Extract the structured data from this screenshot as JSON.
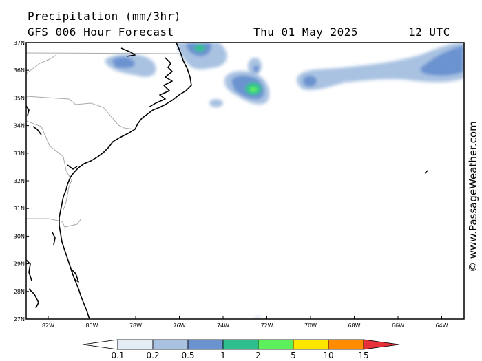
{
  "header": {
    "title": "Precipitation (mm/3hr)",
    "model": "GFS 006 Hour Forecast",
    "date": "Thu 01 May 2025",
    "time": "12 UTC"
  },
  "credit": "© www.PassageWeather.com",
  "axes": {
    "lat_labels": [
      "37N",
      "36N",
      "35N",
      "34N",
      "33N",
      "32N",
      "31N",
      "30N",
      "29N",
      "28N",
      "27N"
    ],
    "lon_labels": [
      "82W",
      "80W",
      "78W",
      "76W",
      "74W",
      "72W",
      "70W",
      "68W",
      "66W",
      "64W"
    ]
  },
  "colorbar": {
    "ticks": [
      "0.1",
      "0.2",
      "0.5",
      "1",
      "2",
      "5",
      "10",
      "15"
    ],
    "colors": [
      "#ffffff",
      "#e4ecf6",
      "#a9c2e2",
      "#6a93d0",
      "#2fbf8f",
      "#5df05d",
      "#ffe600",
      "#ff8c00",
      "#e8303a"
    ]
  }
}
